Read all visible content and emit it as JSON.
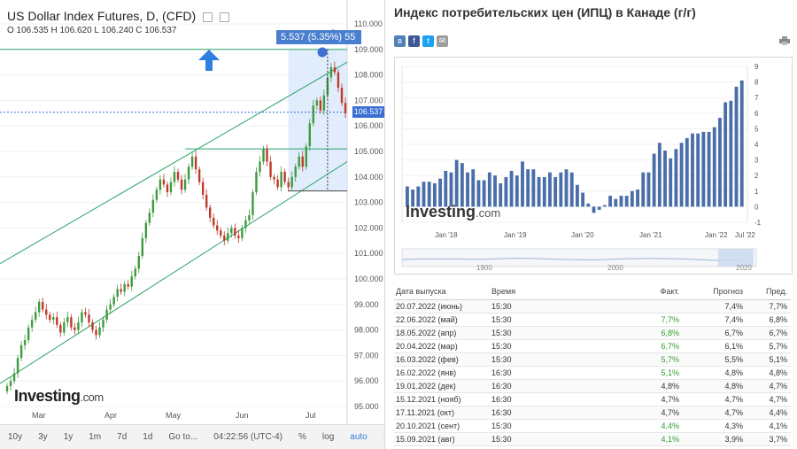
{
  "left_chart": {
    "title": "US Dollar Index Futures, D, (CFD)",
    "ohlc": "O 106.535  H 106.620  L 106.240  C 106.537",
    "measure_label": "5.537 (5.35%) 55",
    "last_price": "106.537",
    "logo_main": "Investing",
    "logo_suffix": ".com",
    "toolbar": [
      "10y",
      "3y",
      "1y",
      "1m",
      "7d",
      "1d",
      "Go to...",
      "04:22:56 (UTC-4)",
      "%",
      "log",
      "auto"
    ],
    "colors": {
      "up": "#3e9b3e",
      "down": "#c0392b",
      "channel": "#29a36a",
      "accent": "#3b6fd4",
      "arrow": "#2f7fe0"
    }
  },
  "chart_data": [
    {
      "type": "candlestick",
      "title": "US Dollar Index Futures, D, (CFD)",
      "ylim": [
        95,
        110
      ],
      "yticks": [
        "110.000",
        "109.000",
        "108.000",
        "107.000",
        "106.000",
        "105.000",
        "104.000",
        "103.000",
        "102.000",
        "101.000",
        "100.000",
        "99.000",
        "98.000",
        "97.000",
        "96.000",
        "95.000"
      ],
      "xticks": [
        "Mar",
        "Apr",
        "May",
        "Jun",
        "Jul"
      ],
      "close_series": [
        95.8,
        96.0,
        96.3,
        96.9,
        97.4,
        97.6,
        98.1,
        98.4,
        98.7,
        99.1,
        98.8,
        98.6,
        98.4,
        98.5,
        98.2,
        97.9,
        98.3,
        98.5,
        98.1,
        98.0,
        98.3,
        98.7,
        98.6,
        98.3,
        98.0,
        97.8,
        98.1,
        98.4,
        98.8,
        99.0,
        99.3,
        99.6,
        99.5,
        99.8,
        99.7,
        100.1,
        100.4,
        100.9,
        101.6,
        102.2,
        102.6,
        103.1,
        103.5,
        103.9,
        103.7,
        103.4,
        103.8,
        104.2,
        103.9,
        103.5,
        103.9,
        104.4,
        104.8,
        104.3,
        103.8,
        103.3,
        102.8,
        102.4,
        102.1,
        101.9,
        101.7,
        101.5,
        101.8,
        102.0,
        101.7,
        101.6,
        102.0,
        102.3,
        102.5,
        103.4,
        104.2,
        104.6,
        105.1,
        104.6,
        104.0,
        103.9,
        103.6,
        104.2,
        103.8,
        103.6,
        104.0,
        104.4,
        104.8,
        104.4,
        105.2,
        106.1,
        106.8,
        107.0,
        106.6,
        107.2,
        107.9,
        108.3,
        108.1,
        107.5,
        106.9,
        106.5
      ]
    },
    {
      "type": "bar",
      "title": "Индекс потребительских цен (ИПЦ) в Канаде (г/г)",
      "ylim": [
        -1,
        9
      ],
      "yticks": [
        "9",
        "8",
        "7",
        "6",
        "5",
        "4",
        "3",
        "2",
        "1",
        "0",
        "-1"
      ],
      "xticks": [
        "Jan '18",
        "Jan '19",
        "Jan '20",
        "Jan '21",
        "Jan '22",
        "Jul '22"
      ],
      "values": [
        1.3,
        1.1,
        1.3,
        1.6,
        1.6,
        1.5,
        1.8,
        2.3,
        2.2,
        3.0,
        2.8,
        2.2,
        2.4,
        1.7,
        1.7,
        2.2,
        2.0,
        1.5,
        1.9,
        2.3,
        2.0,
        2.9,
        2.4,
        2.4,
        1.9,
        1.9,
        2.2,
        1.9,
        2.2,
        2.4,
        2.2,
        1.4,
        0.9,
        0.2,
        -0.4,
        -0.2,
        0.1,
        0.7,
        0.5,
        0.7,
        0.7,
        1.0,
        1.1,
        2.2,
        2.2,
        3.4,
        4.1,
        3.6,
        3.1,
        3.7,
        4.1,
        4.4,
        4.7,
        4.7,
        4.8,
        4.8,
        5.1,
        5.7,
        6.7,
        6.8,
        7.7,
        8.1
      ]
    }
  ],
  "cpi_panel": {
    "title": "Индекс потребительских цен (ИПЦ) в Канаде (г/г)",
    "social_icons": [
      "vk-icon",
      "facebook-icon",
      "twitter-icon",
      "email-icon"
    ],
    "navigator_labels": [
      "1900",
      "2000",
      "2020"
    ],
    "watermark_main": "Investing",
    "watermark_suffix": ".com",
    "table": {
      "headers": [
        "Дата выпуска",
        "Время",
        "Факт.",
        "Прогноз",
        "Пред."
      ],
      "rows": [
        [
          "20.07.2022 (июнь)",
          "15:30",
          "",
          "7,4%",
          "7,7%"
        ],
        [
          "22.06.2022 (май)",
          "15:30",
          "7,7%",
          "7,4%",
          "6,8%"
        ],
        [
          "18.05.2022 (апр)",
          "15:30",
          "6,8%",
          "6,7%",
          "6,7%"
        ],
        [
          "20.04.2022 (мар)",
          "15:30",
          "6,7%",
          "6,1%",
          "5,7%"
        ],
        [
          "16.03.2022 (фев)",
          "15:30",
          "5,7%",
          "5,5%",
          "5,1%"
        ],
        [
          "16.02.2022 (янв)",
          "16:30",
          "5,1%",
          "4,8%",
          "4,8%"
        ],
        [
          "19.01.2022 (дек)",
          "16:30",
          "4,8%",
          "4,8%",
          "4,7%"
        ],
        [
          "15.12.2021 (нояб)",
          "16:30",
          "4,7%",
          "4,7%",
          "4,7%"
        ],
        [
          "17.11.2021 (окт)",
          "16:30",
          "4,7%",
          "4,7%",
          "4,4%"
        ],
        [
          "20.10.2021 (сент)",
          "15:30",
          "4,4%",
          "4,3%",
          "4,1%"
        ],
        [
          "15.09.2021 (авг)",
          "15:30",
          "4,1%",
          "3,9%",
          "3,7%"
        ]
      ],
      "positive_actual_color": "#2e9e2e"
    }
  }
}
